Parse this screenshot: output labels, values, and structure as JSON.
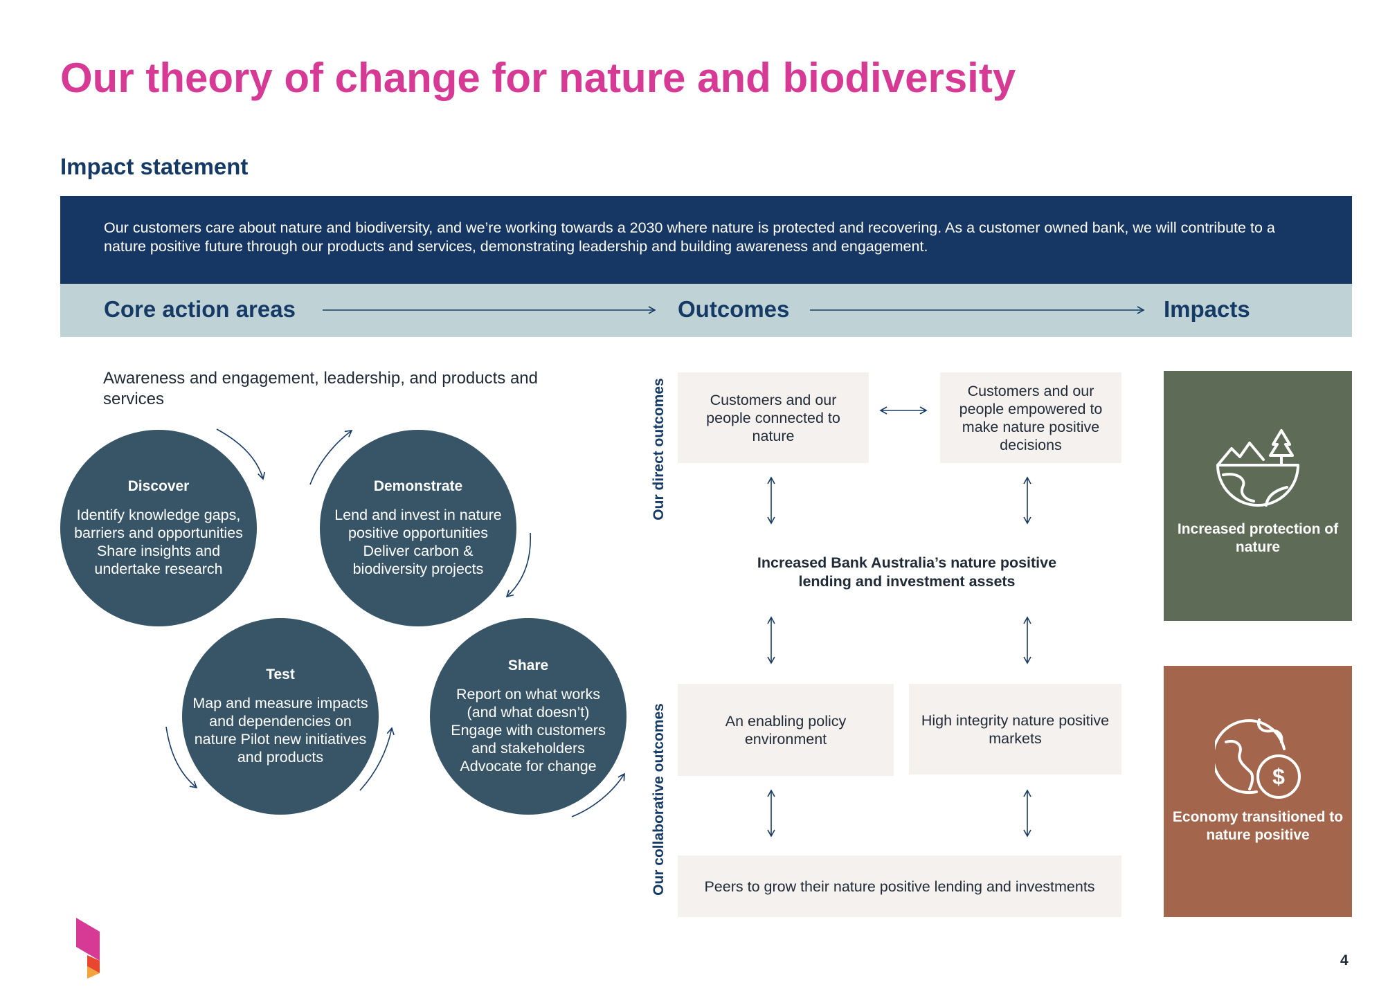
{
  "title": "Our theory of change for nature and biodiversity",
  "impact_statement": {
    "heading": "Impact statement",
    "text": "Our customers care about nature and biodiversity, and we’re working towards a 2030 where nature is protected and recovering. As a customer owned bank, we will contribute to a nature positive future through our products and services, demonstrating leadership and building awareness and engagement."
  },
  "columns": {
    "core": "Core action areas",
    "outcomes": "Outcomes",
    "impacts": "Impacts"
  },
  "intro": "Awareness and engagement, leadership, and products and services",
  "cycle": [
    {
      "title": "Discover",
      "body": "Identify knowledge gaps, barriers and opportunities Share insights and undertake research"
    },
    {
      "title": "Demonstrate",
      "body": "Lend and invest in nature positive opportunities Deliver carbon & biodiversity projects"
    },
    {
      "title": "Test",
      "body": "Map and measure impacts and dependencies on nature Pilot new initiatives and products"
    },
    {
      "title": "Share",
      "body": "Report on what works (and what doesn’t) Engage with customers and stakeholders Advocate for change"
    }
  ],
  "outcomes": {
    "direct_label": "Our direct outcomes",
    "collab_label": "Our collaborative outcomes",
    "connected": "Customers and our people connected to nature",
    "empowered": "Customers and our people empowered to make nature positive decisions",
    "central": "Increased Bank Australia’s nature positive lending and investment assets",
    "policy": "An enabling policy environment",
    "markets": "High integrity nature positive markets",
    "peers": "Peers to grow their nature positive lending and investments"
  },
  "impacts": [
    {
      "label": "Increased protection of nature",
      "icon": "landscape-tree-icon",
      "color": "#5e6b56"
    },
    {
      "label": "Economy transitioned to nature positive",
      "icon": "globe-dollar-icon",
      "color": "#a3654b"
    }
  ],
  "colors": {
    "title": "#d63a94",
    "navy": "#163663",
    "band": "#bfd3d6",
    "circle": "#375567",
    "box": "#f4f1ee"
  },
  "page_number": "4"
}
